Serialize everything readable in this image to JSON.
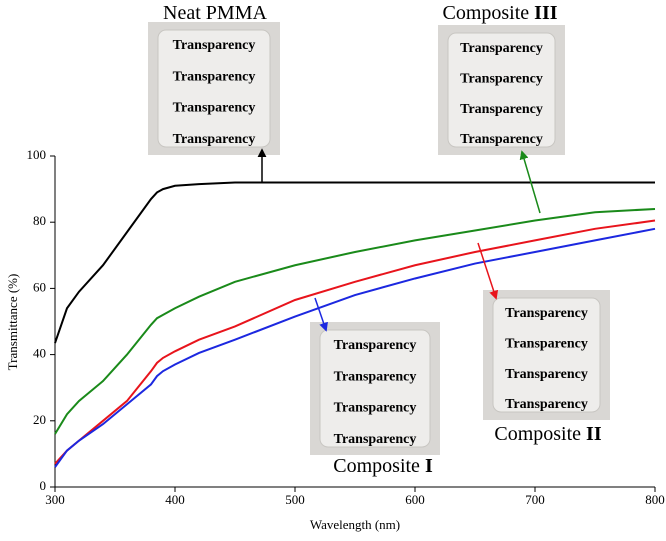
{
  "chart_data": {
    "type": "line",
    "x_label": "Wavelength (nm)",
    "y_label": "Transmittance (%)",
    "x": [
      300,
      310,
      320,
      340,
      360,
      380,
      385,
      390,
      400,
      420,
      450,
      500,
      550,
      600,
      650,
      700,
      750,
      800
    ],
    "series": [
      {
        "color": "#000000",
        "values": [
          43.5,
          54,
          59,
          67,
          77,
          87,
          89,
          90,
          91,
          91.5,
          92,
          92,
          92,
          92,
          92,
          92,
          92,
          92
        ]
      },
      {
        "color": "#1a8a1a",
        "values": [
          16,
          22,
          26,
          32,
          40,
          49,
          51,
          52,
          54,
          57.5,
          62,
          67,
          71,
          74.5,
          77.5,
          80.5,
          83,
          84
        ]
      },
      {
        "color": "#e8141c",
        "values": [
          7,
          11,
          14,
          20,
          26,
          35,
          37.5,
          39,
          41,
          44.5,
          48.5,
          56.5,
          62,
          67,
          71,
          74.5,
          78,
          80.5
        ]
      },
      {
        "color": "#1c28e0",
        "values": [
          6,
          11,
          14,
          19,
          25,
          31,
          33.5,
          35,
          37,
          40.5,
          44.5,
          51.5,
          58,
          63,
          67.5,
          71,
          74.5,
          78
        ]
      }
    ],
    "annotations": [
      {
        "text": "Neat PMMA",
        "photo_text": [
          "Transparency",
          "Transparency",
          "Transparency",
          "Transparency"
        ]
      },
      {
        "text": "Composite",
        "numeral": "III",
        "photo_text": [
          "Transparency",
          "Transparency",
          "Transparency",
          "Transparency"
        ]
      },
      {
        "text": "Composite",
        "numeral": "II",
        "photo_text": [
          "Transparency",
          "Transparency",
          "Transparency",
          "Transparency"
        ]
      },
      {
        "text": "Composite",
        "numeral": "I",
        "photo_text": [
          "Transparency",
          "Transparency",
          "Transparency",
          "Transparency"
        ]
      }
    ],
    "xlim": [
      300,
      800
    ],
    "xticks": [
      300,
      400,
      500,
      600,
      700,
      800
    ],
    "ylim": [
      0,
      100
    ],
    "yticks": [
      0,
      20,
      40,
      60,
      80,
      100
    ]
  }
}
